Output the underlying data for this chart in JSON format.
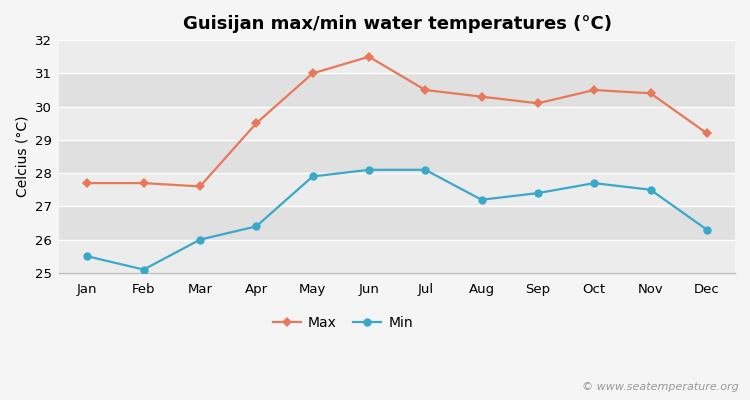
{
  "title": "Guisijan max/min water temperatures (°C)",
  "ylabel": "Celcius (°C)",
  "months": [
    "Jan",
    "Feb",
    "Mar",
    "Apr",
    "May",
    "Jun",
    "Jul",
    "Aug",
    "Sep",
    "Oct",
    "Nov",
    "Dec"
  ],
  "max_values": [
    27.7,
    27.7,
    27.6,
    29.5,
    31.0,
    31.5,
    30.5,
    30.3,
    30.1,
    30.5,
    30.4,
    29.2
  ],
  "min_values": [
    25.5,
    25.1,
    26.0,
    26.4,
    27.9,
    28.1,
    28.1,
    27.2,
    27.4,
    27.7,
    27.5,
    26.3
  ],
  "max_color": "#e8785a",
  "min_color": "#3aa8c8",
  "outer_bg_color": "#f5f5f5",
  "band_light": "#ececec",
  "band_dark": "#e0e0e0",
  "ylim": [
    25.0,
    32.0
  ],
  "yticks": [
    25,
    26,
    27,
    28,
    29,
    30,
    31,
    32
  ],
  "watermark": "© www.seatemperature.org",
  "title_fontsize": 13,
  "label_fontsize": 10,
  "tick_fontsize": 9.5,
  "watermark_fontsize": 8,
  "legend_fontsize": 10
}
